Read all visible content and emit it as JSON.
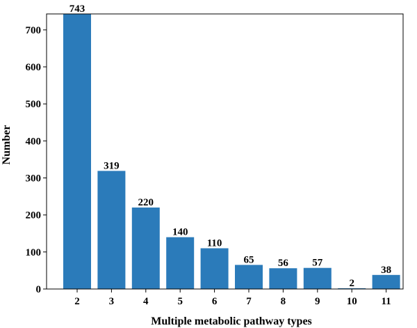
{
  "chart_data": {
    "type": "bar",
    "categories": [
      "2",
      "3",
      "4",
      "5",
      "6",
      "7",
      "8",
      "9",
      "10",
      "11"
    ],
    "values": [
      743,
      319,
      220,
      140,
      110,
      65,
      56,
      57,
      2,
      38
    ],
    "data_labels": [
      "743",
      "319",
      "220",
      "140",
      "110",
      "65",
      "56",
      "57",
      "2",
      "38"
    ],
    "xlabel": "Multiple metabolic pathway types",
    "ylabel": "Number",
    "ylim": [
      0,
      743
    ],
    "yticks": [
      0,
      100,
      200,
      300,
      400,
      500,
      600,
      700
    ],
    "grid": false,
    "bar_color": "#2b7bba"
  }
}
